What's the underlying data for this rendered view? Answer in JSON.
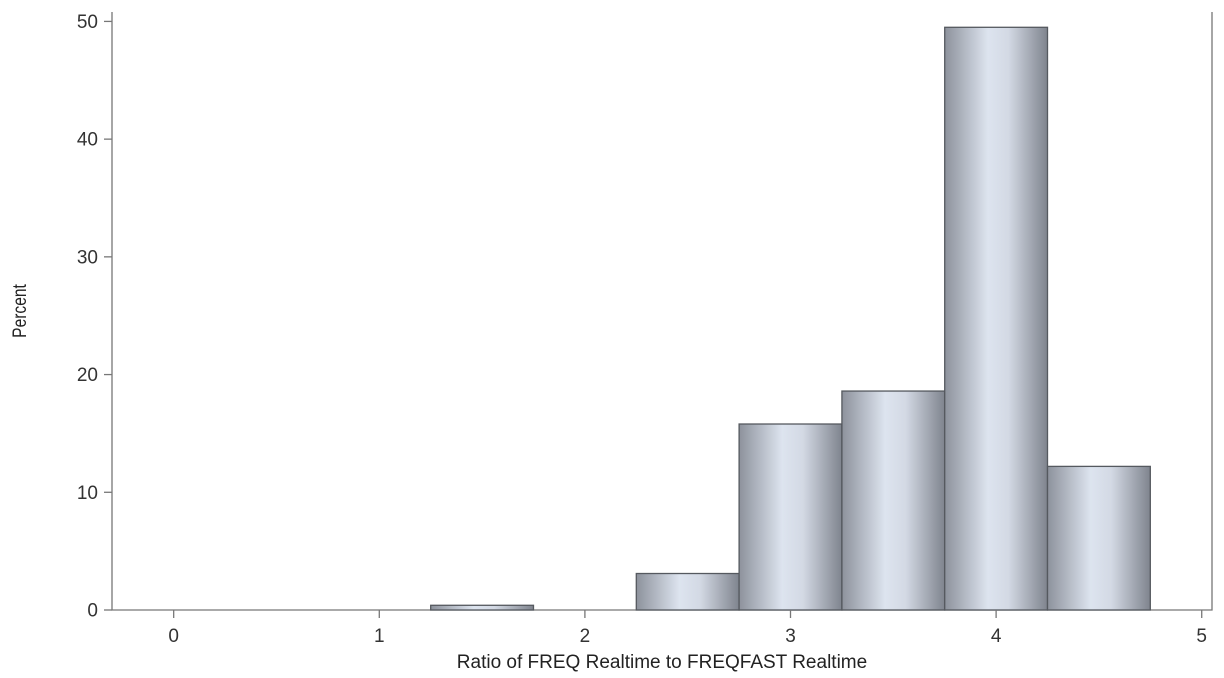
{
  "chart_data": {
    "type": "bar",
    "subtype": "histogram",
    "title": "",
    "xlabel": "Ratio of FREQ Realtime to FREQFAST Realtime",
    "ylabel": "Percent",
    "xlim": [
      -0.3,
      5.05
    ],
    "ylim": [
      0,
      50.8
    ],
    "x_ticks": [
      0,
      1,
      2,
      3,
      4,
      5
    ],
    "x_tick_labels": [
      "0",
      "1",
      "2",
      "3",
      "4",
      "5"
    ],
    "y_ticks": [
      0,
      10,
      20,
      30,
      40,
      50
    ],
    "y_tick_labels": [
      "0",
      "10",
      "20",
      "30",
      "40",
      "50"
    ],
    "bin_width": 0.5,
    "bins": [
      {
        "x_start": 1.25,
        "x_end": 1.75,
        "value": 0.4
      },
      {
        "x_start": 1.75,
        "x_end": 2.25,
        "value": 0
      },
      {
        "x_start": 2.25,
        "x_end": 2.75,
        "value": 3.1
      },
      {
        "x_start": 2.75,
        "x_end": 3.25,
        "value": 15.8
      },
      {
        "x_start": 3.25,
        "x_end": 3.75,
        "value": 18.6
      },
      {
        "x_start": 3.75,
        "x_end": 4.25,
        "value": 49.5
      },
      {
        "x_start": 4.25,
        "x_end": 4.75,
        "value": 12.2
      }
    ],
    "grid": false,
    "legend": "none",
    "colors": {
      "bar_edge": "#55595f",
      "bar_dark": "#8d929c",
      "bar_light": "#dde4ef",
      "axis": "#777777",
      "text": "#333333"
    }
  }
}
